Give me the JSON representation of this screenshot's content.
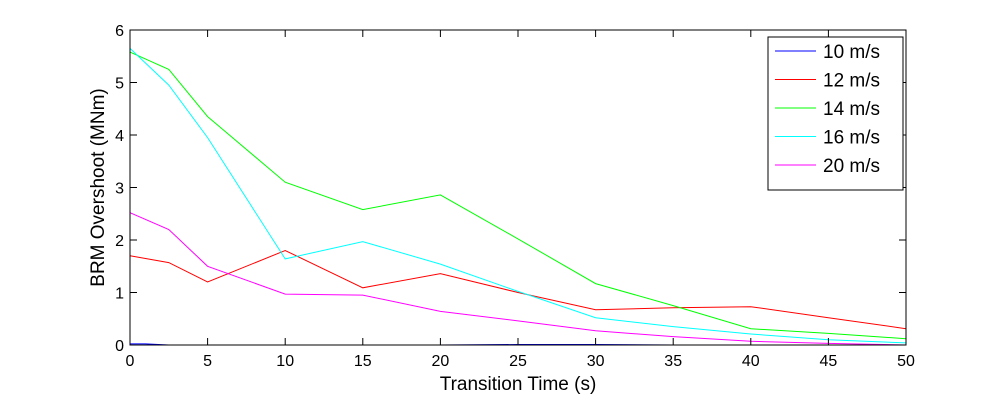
{
  "chart_data": {
    "type": "line",
    "xlabel": "Transition Time (s)",
    "ylabel": "BRM Overshoot (MNm)",
    "xlim": [
      0,
      50
    ],
    "ylim": [
      0,
      6
    ],
    "xticks": [
      "0",
      "5",
      "10",
      "15",
      "20",
      "25",
      "30",
      "35",
      "40",
      "45",
      "50"
    ],
    "yticks": [
      "0",
      "1",
      "2",
      "3",
      "4",
      "5",
      "6"
    ],
    "grid": false,
    "legend_position": "top-right",
    "series": [
      {
        "name": "10 m/s",
        "color": "#0000ff",
        "x": [
          0,
          1,
          2.5,
          5,
          10,
          15,
          20,
          25,
          30,
          35,
          40,
          45,
          50
        ],
        "y": [
          0.02,
          0.02,
          0,
          0,
          0,
          0,
          0,
          0.01,
          0.01,
          0,
          0,
          0,
          0
        ]
      },
      {
        "name": "12 m/s",
        "color": "#ff0000",
        "x": [
          0,
          2.5,
          5,
          10,
          15,
          20,
          25,
          30,
          35,
          40,
          45,
          50
        ],
        "y": [
          1.7,
          1.57,
          1.2,
          1.8,
          1.09,
          1.36,
          1.0,
          0.67,
          0.71,
          0.73,
          0.52,
          0.31
        ]
      },
      {
        "name": "14 m/s",
        "color": "#00ff00",
        "x": [
          0,
          2.5,
          5,
          10,
          15,
          20,
          25,
          30,
          35,
          40,
          45,
          50
        ],
        "y": [
          5.58,
          5.25,
          4.35,
          3.1,
          2.58,
          2.86,
          2.02,
          1.17,
          0.75,
          0.31,
          0.22,
          0.12
        ]
      },
      {
        "name": "16 m/s",
        "color": "#00ffff",
        "x": [
          0,
          2.5,
          5,
          10,
          15,
          20,
          25,
          30,
          35,
          40,
          45,
          50
        ],
        "y": [
          5.65,
          4.95,
          3.95,
          1.64,
          1.97,
          1.54,
          1.02,
          0.52,
          0.35,
          0.21,
          0.1,
          0.04
        ]
      },
      {
        "name": "20 m/s",
        "color": "#ff00ff",
        "x": [
          0,
          2.5,
          5,
          10,
          15,
          20,
          25,
          30,
          35,
          40,
          45,
          50
        ],
        "y": [
          2.52,
          2.2,
          1.5,
          0.97,
          0.95,
          0.64,
          0.46,
          0.27,
          0.16,
          0.07,
          0.03,
          0.0
        ]
      }
    ]
  }
}
